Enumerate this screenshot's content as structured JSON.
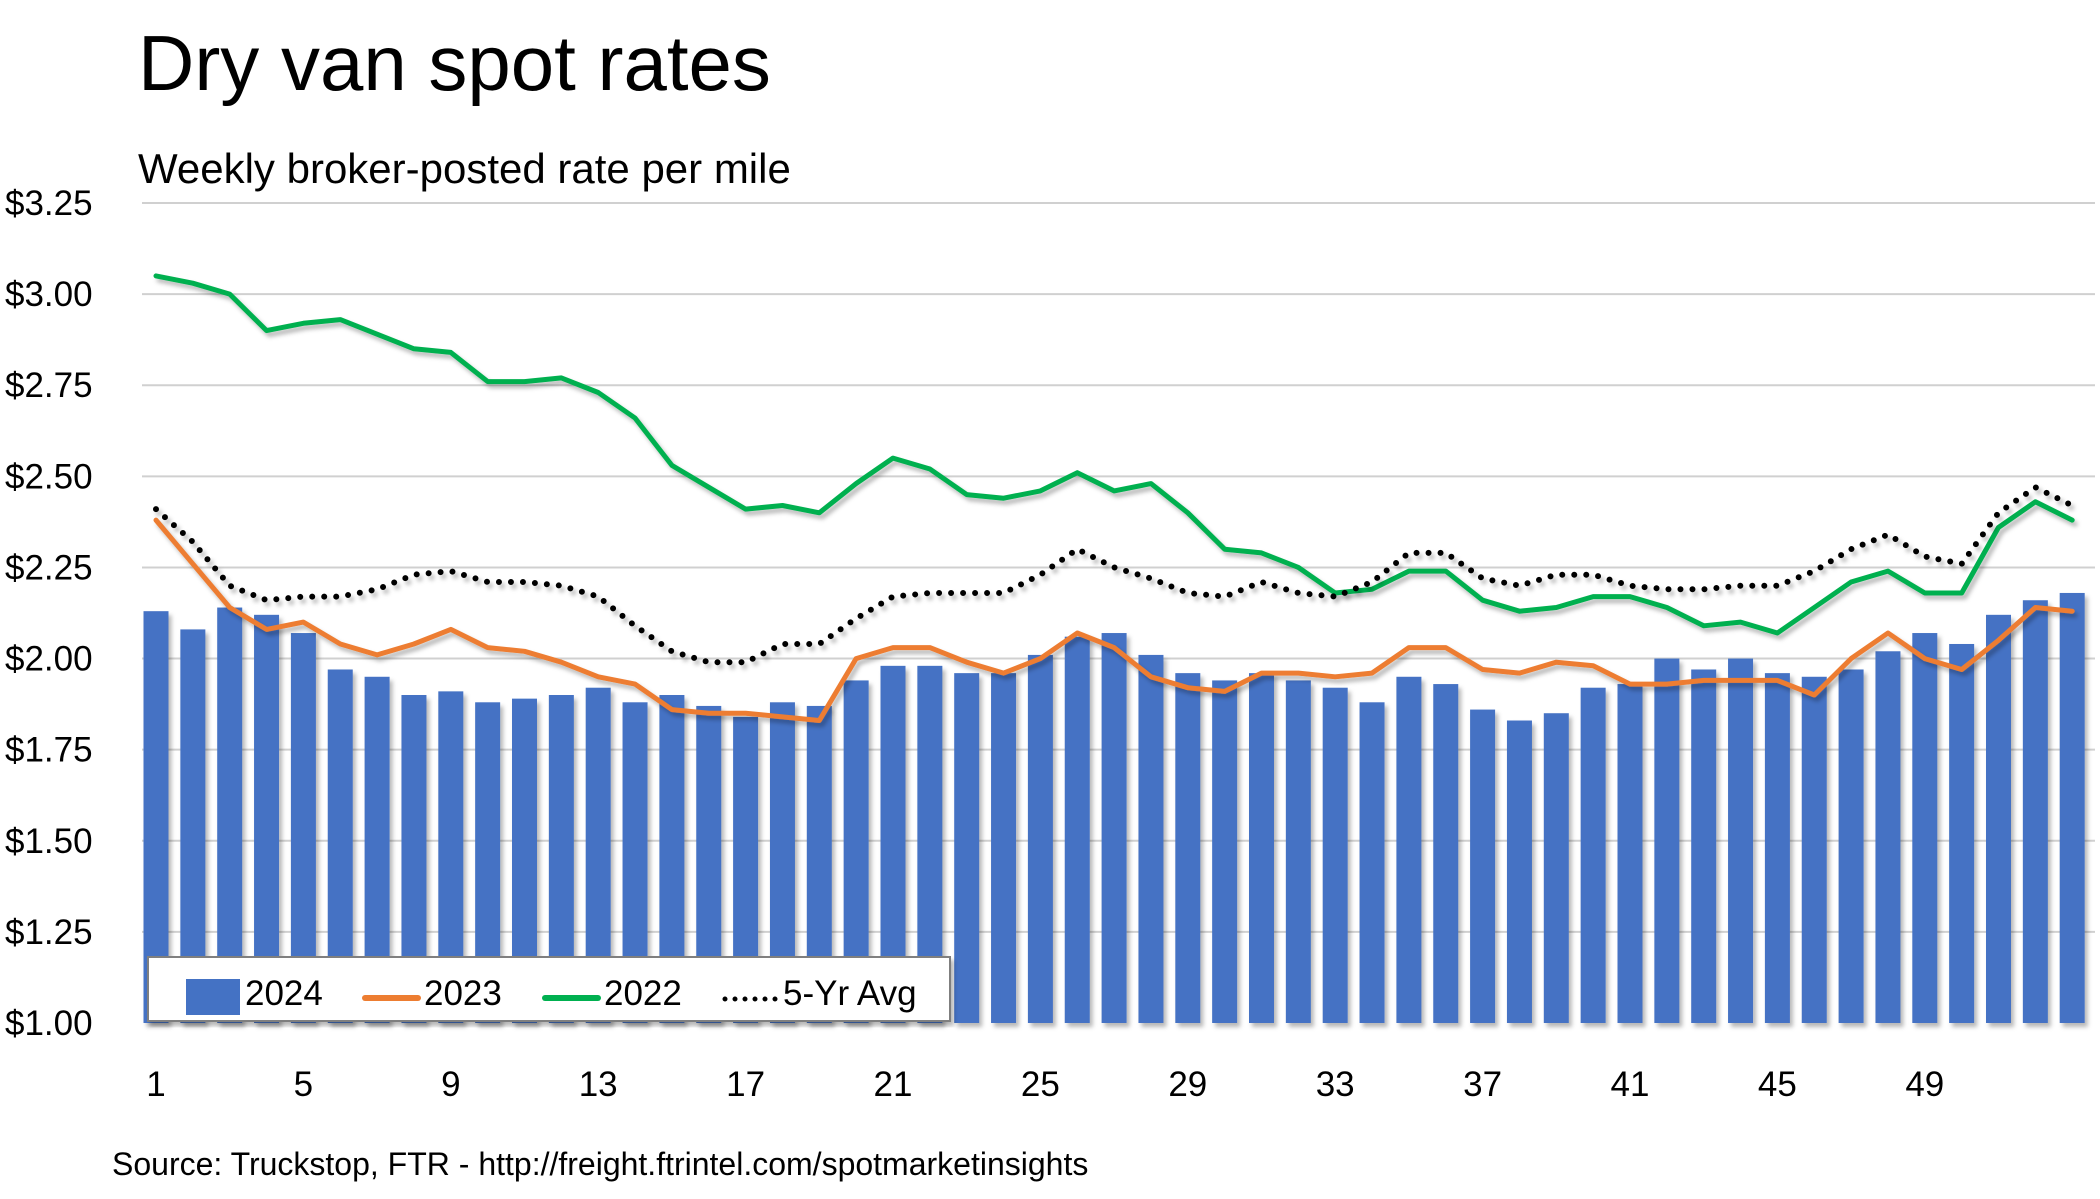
{
  "chart_data": {
    "type": "bar+line",
    "title": "Dry van spot rates",
    "subtitle": "Weekly broker-posted rate per mile",
    "source": "Source: Truckstop, FTR - http://freight.ftrintel.com/spotmarketinsights",
    "xlabel": "",
    "ylabel": "",
    "ylim": [
      1.0,
      3.25
    ],
    "y_ticks": [
      1.0,
      1.25,
      1.5,
      1.75,
      2.0,
      2.25,
      2.5,
      2.75,
      3.0,
      3.25
    ],
    "y_tick_labels": [
      "$1.00",
      "$1.25",
      "$1.50",
      "$1.75",
      "$2.00",
      "$2.25",
      "$2.50",
      "$2.75",
      "$3.00",
      "$3.25"
    ],
    "x_tick_labels": [
      "1",
      "5",
      "9",
      "13",
      "17",
      "21",
      "25",
      "29",
      "33",
      "37",
      "41",
      "45",
      "49"
    ],
    "x_tick_values": [
      1,
      5,
      9,
      13,
      17,
      21,
      25,
      29,
      33,
      37,
      41,
      45,
      49
    ],
    "weeks": 53,
    "grid": "horizontal",
    "legend_position": "bottom-left",
    "series": [
      {
        "name": "2024",
        "kind": "bar",
        "color": "#4472C4",
        "values": [
          2.13,
          2.08,
          2.14,
          2.12,
          2.07,
          1.97,
          1.95,
          1.9,
          1.91,
          1.88,
          1.89,
          1.9,
          1.92,
          1.88,
          1.9,
          1.87,
          1.84,
          1.88,
          1.87,
          1.94,
          1.98,
          1.98,
          1.96,
          1.96,
          2.01,
          2.06,
          2.07,
          2.01,
          1.96,
          1.94,
          1.96,
          1.94,
          1.92,
          1.88,
          1.95,
          1.93,
          1.86,
          1.83,
          1.85,
          1.92,
          1.93,
          2.0,
          1.97,
          2.0,
          1.96,
          1.95,
          1.97,
          2.02,
          2.07,
          2.04,
          2.12,
          2.16,
          2.18
        ]
      },
      {
        "name": "2023",
        "kind": "line",
        "color": "#ED7D31",
        "values": [
          2.38,
          2.26,
          2.14,
          2.08,
          2.1,
          2.04,
          2.01,
          2.04,
          2.08,
          2.03,
          2.02,
          1.99,
          1.95,
          1.93,
          1.86,
          1.85,
          1.85,
          1.84,
          1.83,
          2.0,
          2.03,
          2.03,
          1.99,
          1.96,
          2.0,
          2.07,
          2.03,
          1.95,
          1.92,
          1.91,
          1.96,
          1.96,
          1.95,
          1.96,
          2.03,
          2.03,
          1.97,
          1.96,
          1.99,
          1.98,
          1.93,
          1.93,
          1.94,
          1.94,
          1.94,
          1.9,
          2.0,
          2.07,
          2.0,
          1.97,
          2.05,
          2.14,
          2.13
        ]
      },
      {
        "name": "2022",
        "kind": "line",
        "color": "#00B050",
        "values": [
          3.05,
          3.03,
          3.0,
          2.9,
          2.92,
          2.93,
          2.89,
          2.85,
          2.84,
          2.76,
          2.76,
          2.77,
          2.73,
          2.66,
          2.53,
          2.47,
          2.41,
          2.42,
          2.4,
          2.48,
          2.55,
          2.52,
          2.45,
          2.44,
          2.46,
          2.51,
          2.46,
          2.48,
          2.4,
          2.3,
          2.29,
          2.25,
          2.18,
          2.19,
          2.24,
          2.24,
          2.16,
          2.13,
          2.14,
          2.17,
          2.17,
          2.14,
          2.09,
          2.1,
          2.07,
          2.14,
          2.21,
          2.24,
          2.18,
          2.18,
          2.36,
          2.43,
          2.38
        ]
      },
      {
        "name": "5-Yr Avg",
        "kind": "dotted-line",
        "color": "#000000",
        "values": [
          2.41,
          2.32,
          2.2,
          2.16,
          2.17,
          2.17,
          2.19,
          2.23,
          2.24,
          2.21,
          2.21,
          2.2,
          2.17,
          2.09,
          2.02,
          1.99,
          1.99,
          2.04,
          2.04,
          2.11,
          2.17,
          2.18,
          2.18,
          2.18,
          2.23,
          2.3,
          2.25,
          2.22,
          2.18,
          2.17,
          2.21,
          2.18,
          2.17,
          2.21,
          2.29,
          2.29,
          2.22,
          2.2,
          2.23,
          2.23,
          2.2,
          2.19,
          2.19,
          2.2,
          2.2,
          2.24,
          2.3,
          2.34,
          2.28,
          2.26,
          2.4,
          2.47,
          2.42
        ]
      }
    ]
  }
}
